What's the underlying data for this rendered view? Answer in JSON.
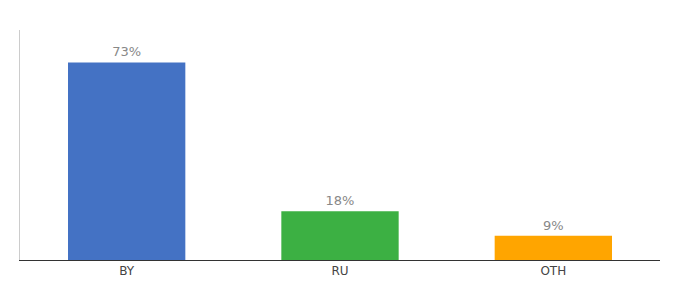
{
  "chart_data": {
    "type": "bar",
    "categories": [
      "BY",
      "RU",
      "OTH"
    ],
    "values": [
      73,
      18,
      9
    ],
    "value_labels": [
      "73%",
      "18%",
      "9%"
    ],
    "colors": [
      "#4472C4",
      "#3CB043",
      "#FFA500"
    ],
    "ylim": [
      0,
      85
    ],
    "grid": false,
    "data_labels": true,
    "tick_labels": "x"
  }
}
